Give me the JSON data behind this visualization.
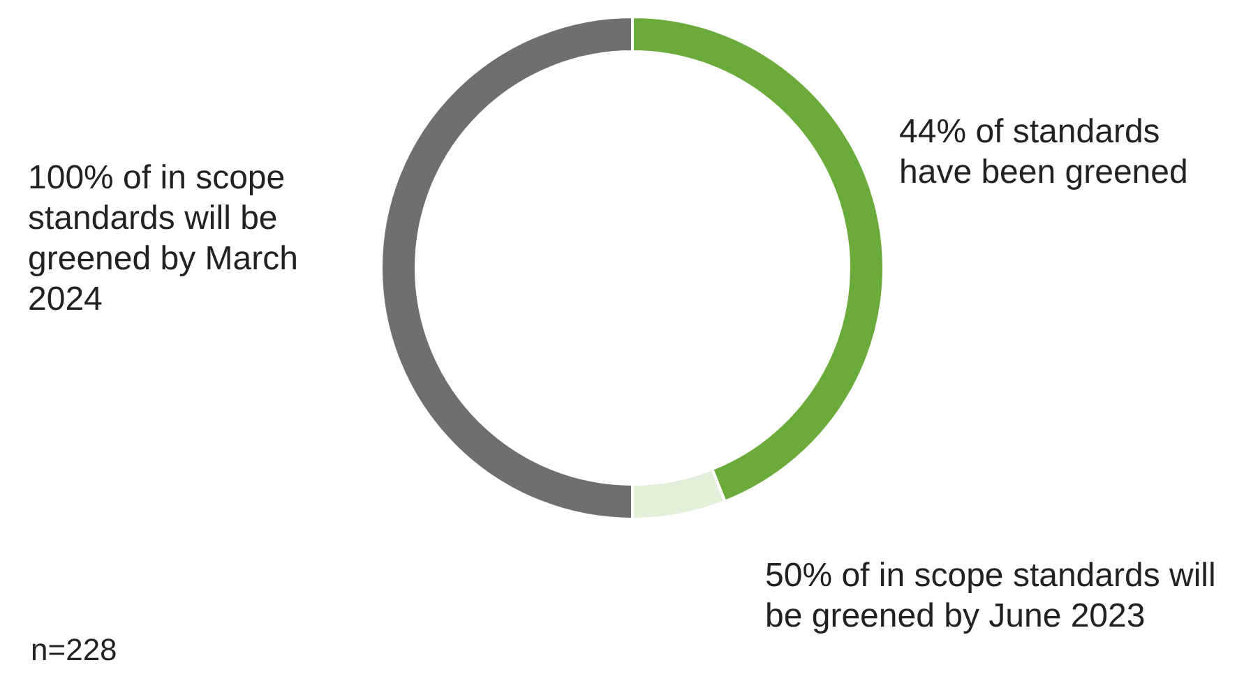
{
  "chart_data": {
    "type": "donut",
    "categories": [
      "44% of standards have been greened",
      "50% of in scope standards will be greened by June 2023",
      "100% of in scope standards will be greened by March 2024"
    ],
    "values": [
      44,
      6,
      50
    ],
    "colors": [
      "#6aab3c",
      "#e2efd9",
      "#6f6f6f"
    ],
    "annotations": [
      "n=228"
    ]
  }
}
